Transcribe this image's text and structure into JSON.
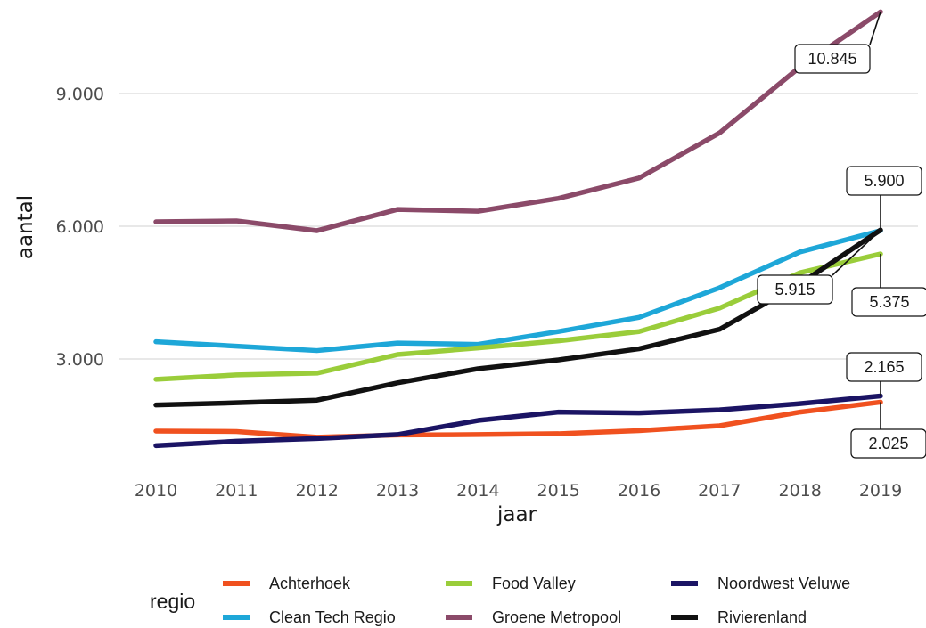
{
  "chart_data": {
    "type": "line",
    "xlabel": "jaar",
    "ylabel": "aantal",
    "x": [
      2010,
      2011,
      2012,
      2013,
      2014,
      2015,
      2016,
      2017,
      2018,
      2019
    ],
    "x_tick_labels": [
      "2010",
      "2011",
      "2012",
      "2013",
      "2014",
      "2015",
      "2016",
      "2017",
      "2018",
      "2019"
    ],
    "ylim": [
      0,
      11000
    ],
    "y_ticks": [
      3000,
      6000,
      9000
    ],
    "y_tick_labels": [
      "3.000",
      "6.000",
      "9.000"
    ],
    "grid": "horizontal",
    "legend": {
      "title": "regio",
      "position": "bottom",
      "entries": [
        {
          "name": "Achterhoek",
          "color": "#f0511f"
        },
        {
          "name": "Food Valley",
          "color": "#9acd3a"
        },
        {
          "name": "Noordwest Veluwe",
          "color": "#1b1464"
        },
        {
          "name": "Clean Tech Regio",
          "color": "#1ea7d8"
        },
        {
          "name": "Groene Metropool",
          "color": "#8b4a69"
        },
        {
          "name": "Rivierenland",
          "color": "#111111"
        }
      ]
    },
    "series": [
      {
        "name": "Achterhoek",
        "color": "#f0511f",
        "values": [
          1370,
          1360,
          1230,
          1280,
          1290,
          1310,
          1380,
          1490,
          1800,
          2025
        ]
      },
      {
        "name": "Clean Tech Regio",
        "color": "#1ea7d8",
        "values": [
          3390,
          3290,
          3190,
          3360,
          3330,
          3620,
          3940,
          4610,
          5420,
          5900
        ]
      },
      {
        "name": "Food Valley",
        "color": "#9acd3a",
        "values": [
          2540,
          2640,
          2680,
          3100,
          3250,
          3410,
          3620,
          4150,
          4950,
          5375
        ]
      },
      {
        "name": "Groene Metropool",
        "color": "#8b4a69",
        "values": [
          6100,
          6120,
          5900,
          6380,
          6340,
          6630,
          7090,
          8110,
          9600,
          10845
        ]
      },
      {
        "name": "Noordwest Veluwe",
        "color": "#1b1464",
        "values": [
          1040,
          1140,
          1200,
          1290,
          1610,
          1800,
          1780,
          1850,
          1990,
          2165
        ]
      },
      {
        "name": "Rivierenland",
        "color": "#111111",
        "values": [
          1960,
          2010,
          2070,
          2460,
          2780,
          2980,
          3230,
          3670,
          4700,
          5915
        ]
      }
    ],
    "annotations": [
      {
        "text": "10.845",
        "series": "Groene Metropool"
      },
      {
        "text": "5.900",
        "series": "Clean Tech Regio"
      },
      {
        "text": "5.915",
        "series": "Rivierenland"
      },
      {
        "text": "5.375",
        "series": "Food Valley"
      },
      {
        "text": "2.165",
        "series": "Noordwest Veluwe"
      },
      {
        "text": "2.025",
        "series": "Achterhoek"
      }
    ]
  }
}
